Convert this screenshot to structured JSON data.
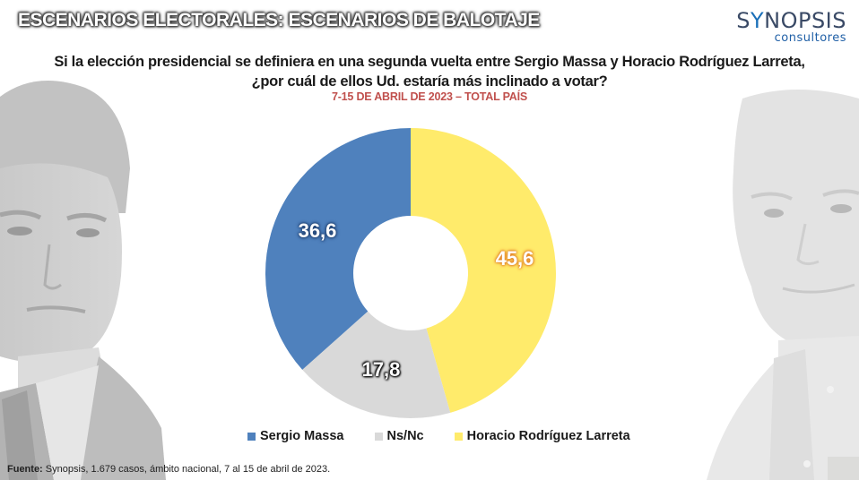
{
  "slide": {
    "title": "ESCENARIOS ELECTORALES: ESCENARIOS DE BALOTAJE"
  },
  "logo": {
    "main": "SYNOPSIS",
    "main_pre": "S",
    "main_y": "Y",
    "main_post": "NOPSIS",
    "sub": "consultores"
  },
  "question": {
    "line1": "Si la elección presidencial se definiera en una segunda vuelta entre Sergio Massa y Horacio Rodríguez Larreta,",
    "line2": "¿por cuál de ellos Ud. estaría más inclinado a votar?"
  },
  "subtitle": "7-15 DE ABRIL DE 2023 – TOTAL PAÍS",
  "labels": {
    "massa": "36,6",
    "nsnc": "17,8",
    "larreta": "45,6"
  },
  "legend": [
    {
      "label": "Sergio Massa",
      "color": "#4f81bd"
    },
    {
      "label": "Ns/Nc",
      "color": "#d9d9d9"
    },
    {
      "label": "Horacio Rodríguez Larreta",
      "color": "#ffeb6b"
    }
  ],
  "footer": {
    "label": "Fuente:",
    "text": " Synopsis, 1.679 casos, ámbito nacional, 7 al 15 de abril de 2023."
  },
  "photos": {
    "left": "sergio-massa-portrait",
    "right": "horacio-rodriguez-larreta-portrait"
  },
  "chart_data": {
    "type": "pie",
    "subtype": "donut",
    "title": "Si la elección presidencial se definiera en una segunda vuelta entre Sergio Massa y Horacio Rodríguez Larreta, ¿por cuál de ellos Ud. estaría más inclinado a votar?",
    "subtitle": "7-15 DE ABRIL DE 2023 – TOTAL PAÍS",
    "categories": [
      "Horacio Rodríguez Larreta",
      "Ns/Nc",
      "Sergio Massa"
    ],
    "values": [
      45.6,
      17.8,
      36.6
    ],
    "value_labels": [
      "45,6",
      "17,8",
      "36,6"
    ],
    "colors": [
      "#ffeb6b",
      "#d9d9d9",
      "#4f81bd"
    ],
    "start_angle": "12 o'clock, clockwise",
    "legend": [
      "Sergio Massa",
      "Ns/Nc",
      "Horacio Rodríguez Larreta"
    ],
    "legend_position": "bottom",
    "unit": "%",
    "source": "Fuente: Synopsis, 1.679 casos, ámbito nacional, 7 al 15 de abril de 2023."
  }
}
